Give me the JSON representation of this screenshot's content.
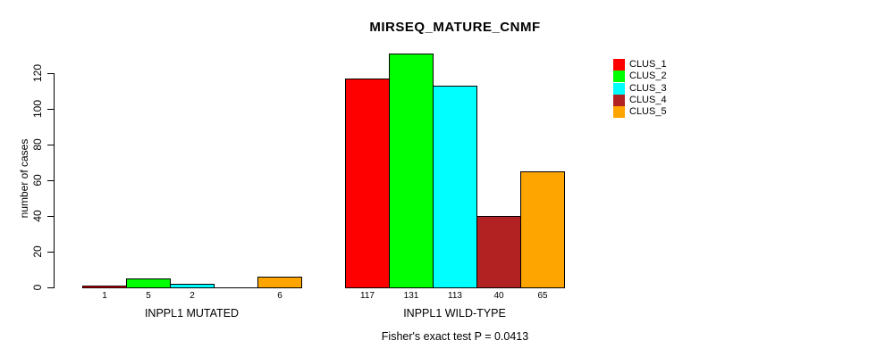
{
  "title": "MIRSEQ_MATURE_CNMF",
  "caption": "Fisher's exact test P = 0.0413",
  "chart_data": {
    "type": "bar",
    "title": "MIRSEQ_MATURE_CNMF",
    "xlabel": "",
    "ylabel": "number of cases",
    "ylim": [
      0,
      120
    ],
    "yticks": [
      0,
      20,
      40,
      60,
      80,
      100,
      120
    ],
    "grid": false,
    "legend_position": "right",
    "series": [
      {
        "name": "CLUS_1",
        "color": "#FF0000"
      },
      {
        "name": "CLUS_2",
        "color": "#00FF00"
      },
      {
        "name": "CLUS_3",
        "color": "#00FFFF"
      },
      {
        "name": "CLUS_4",
        "color": "#B22222"
      },
      {
        "name": "CLUS_5",
        "color": "#FFA500"
      }
    ],
    "groups": [
      {
        "label": "INPPL1 MUTATED",
        "values": [
          1,
          5,
          2,
          0,
          6
        ],
        "bar_labels": [
          "1",
          "5",
          "2",
          "",
          "6"
        ]
      },
      {
        "label": "INPPL1 WILD-TYPE",
        "values": [
          117,
          131,
          113,
          40,
          65
        ],
        "bar_labels": [
          "117",
          "131",
          "113",
          "40",
          "65"
        ]
      }
    ],
    "annotation": "Fisher's exact test P = 0.0413"
  }
}
